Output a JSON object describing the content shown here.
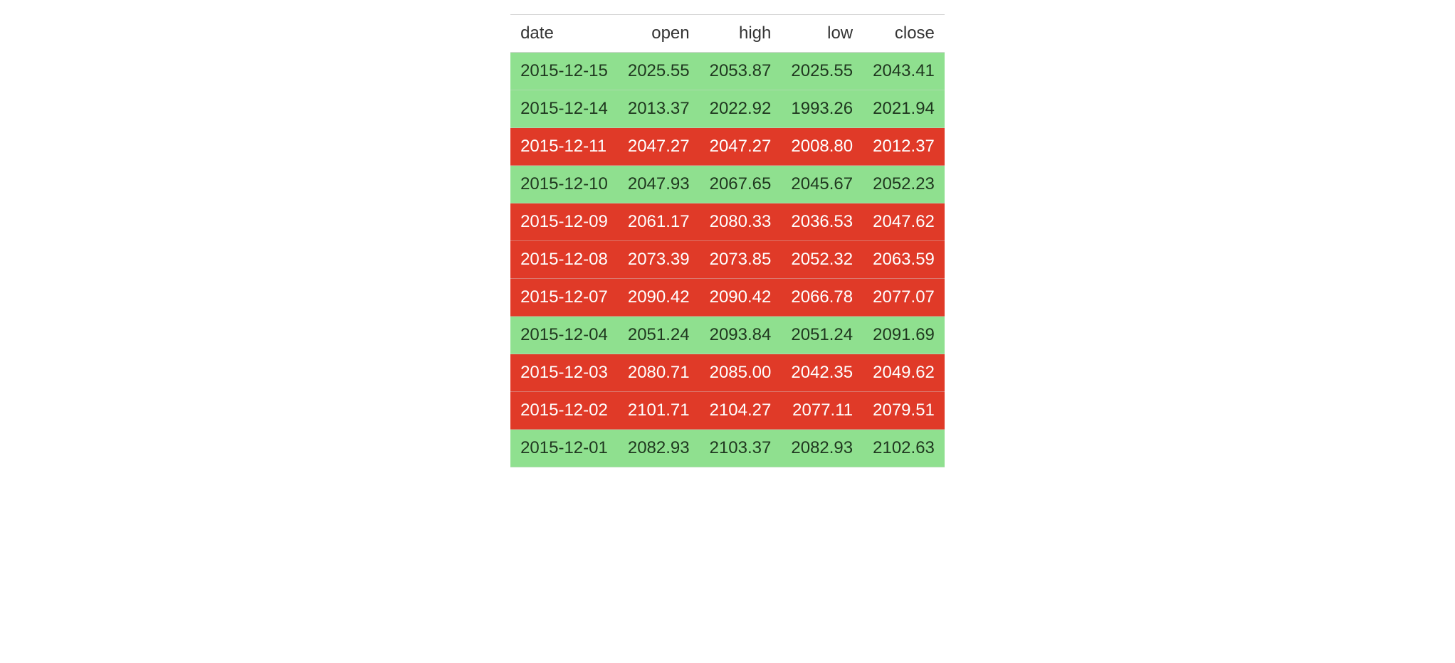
{
  "table": {
    "type": "table",
    "background_color": "#ffffff",
    "header_fontsize": 24,
    "cell_fontsize": 24,
    "row_border_color": "#d4d4d4",
    "up_color": "#8fe08f",
    "up_text_color": "#1f371f",
    "down_color": "#e03a28",
    "down_text_color": "#ffffff",
    "columns": [
      "date",
      "open",
      "high",
      "low",
      "close"
    ],
    "column_align": [
      "left",
      "right",
      "right",
      "right",
      "right"
    ],
    "rows": [
      {
        "class": "up",
        "cells": [
          "2015-12-15",
          "2025.55",
          "2053.87",
          "2025.55",
          "2043.41"
        ]
      },
      {
        "class": "up",
        "cells": [
          "2015-12-14",
          "2013.37",
          "2022.92",
          "1993.26",
          "2021.94"
        ]
      },
      {
        "class": "down",
        "cells": [
          "2015-12-11",
          "2047.27",
          "2047.27",
          "2008.80",
          "2012.37"
        ]
      },
      {
        "class": "up",
        "cells": [
          "2015-12-10",
          "2047.93",
          "2067.65",
          "2045.67",
          "2052.23"
        ]
      },
      {
        "class": "down",
        "cells": [
          "2015-12-09",
          "2061.17",
          "2080.33",
          "2036.53",
          "2047.62"
        ]
      },
      {
        "class": "down",
        "cells": [
          "2015-12-08",
          "2073.39",
          "2073.85",
          "2052.32",
          "2063.59"
        ]
      },
      {
        "class": "down",
        "cells": [
          "2015-12-07",
          "2090.42",
          "2090.42",
          "2066.78",
          "2077.07"
        ]
      },
      {
        "class": "up",
        "cells": [
          "2015-12-04",
          "2051.24",
          "2093.84",
          "2051.24",
          "2091.69"
        ]
      },
      {
        "class": "down",
        "cells": [
          "2015-12-03",
          "2080.71",
          "2085.00",
          "2042.35",
          "2049.62"
        ]
      },
      {
        "class": "down",
        "cells": [
          "2015-12-02",
          "2101.71",
          "2104.27",
          "2077.11",
          "2079.51"
        ]
      },
      {
        "class": "up",
        "cells": [
          "2015-12-01",
          "2082.93",
          "2103.37",
          "2082.93",
          "2102.63"
        ]
      }
    ]
  }
}
